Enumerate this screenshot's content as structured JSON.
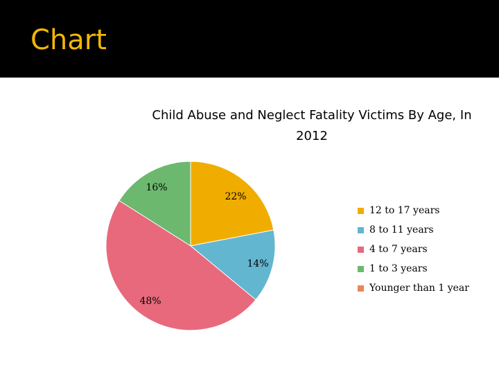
{
  "slide": {
    "title": "Chart"
  },
  "colors": {
    "header_background": "#000000",
    "title_text": "#f2b705"
  },
  "chart_data": {
    "type": "pie",
    "title": "Child Abuse and Neglect Fatality Victims By Age, In 2012",
    "title_lines": [
      "Child Abuse and Neglect Fatality Victims By Age, In",
      "2012"
    ],
    "legend_position": "right",
    "slices": [
      {
        "label": "12 to 17 years",
        "value": 22,
        "display": "22%",
        "color": "#f0ad00"
      },
      {
        "label": "8 to 11 years",
        "value": 14,
        "display": "14%",
        "color": "#62b6d0"
      },
      {
        "label": "4 to 7 years",
        "value": 48,
        "display": "48%",
        "color": "#e8697c"
      },
      {
        "label": "1 to 3 years",
        "value": 16,
        "display": "16%",
        "color": "#6cb86f"
      },
      {
        "label": "Younger than 1 year",
        "value": 0,
        "display": "",
        "color": "#e8875a"
      }
    ]
  }
}
